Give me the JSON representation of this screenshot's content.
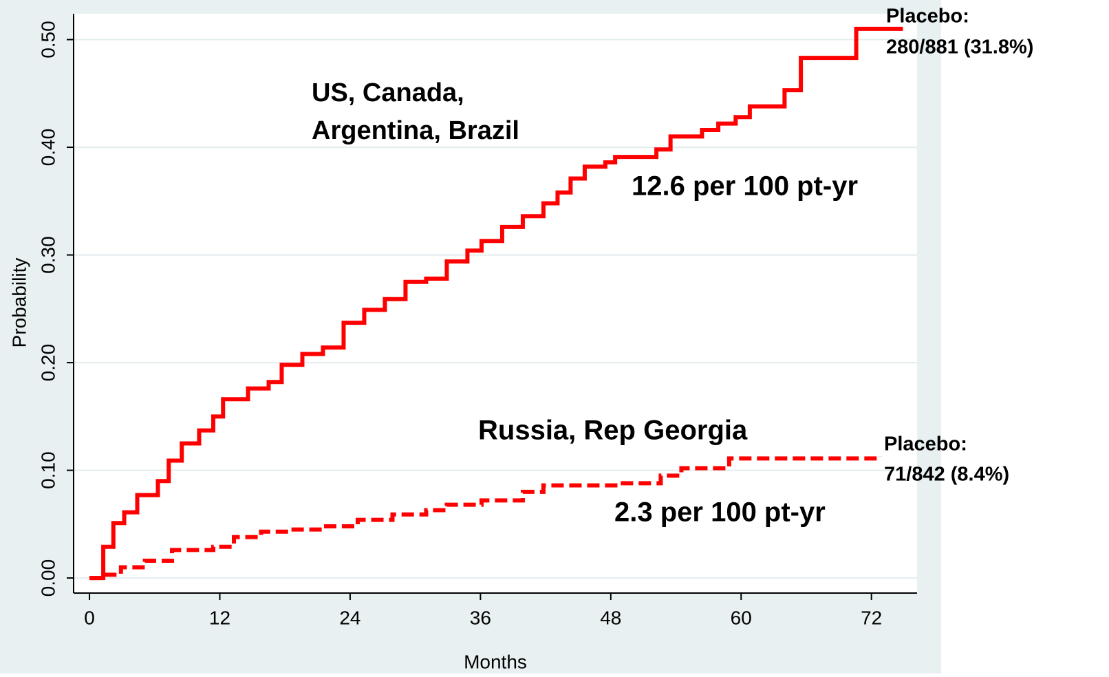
{
  "chart_data": {
    "type": "step",
    "x_label": "Months",
    "y_label": "Probability",
    "xlim": [
      -1.46,
      76.2
    ],
    "ylim": [
      -0.014,
      0.524
    ],
    "xticks": [
      0,
      12,
      24,
      36,
      48,
      60,
      72
    ],
    "yticks": [
      {
        "value": 0,
        "label": "0.00"
      },
      {
        "value": 0.1,
        "label": "0.10"
      },
      {
        "value": 0.2,
        "label": "0.20"
      },
      {
        "value": 0.3,
        "label": "0.30"
      },
      {
        "value": 0.4,
        "label": "0.40"
      },
      {
        "value": 0.5,
        "label": "0.50"
      }
    ],
    "grid": true,
    "series": [
      {
        "color": "#ff0000",
        "style": "solid",
        "x": [
          0,
          1.27,
          2.2,
          3.2,
          4.4,
          6.3,
          7.3,
          8.5,
          10.1,
          11.4,
          12.3,
          14.6,
          16.5,
          17.7,
          19.6,
          21.5,
          23.4,
          25.3,
          27.2,
          29.1,
          31.0,
          32.9,
          34.8,
          36.1,
          38.0,
          39.9,
          41.8,
          43.1,
          44.3,
          45.6,
          47.5,
          48.4,
          52.2,
          53.5,
          56.4,
          57.9,
          59.5,
          60.8,
          64.0,
          65.5,
          70.6,
          74.9
        ],
        "values": [
          0,
          0.029,
          0.051,
          0.061,
          0.077,
          0.09,
          0.109,
          0.125,
          0.137,
          0.15,
          0.166,
          0.176,
          0.182,
          0.198,
          0.208,
          0.214,
          0.237,
          0.249,
          0.259,
          0.275,
          0.278,
          0.294,
          0.304,
          0.313,
          0.326,
          0.336,
          0.348,
          0.358,
          0.371,
          0.382,
          0.386,
          0.391,
          0.398,
          0.41,
          0.416,
          0.422,
          0.428,
          0.438,
          0.453,
          0.483,
          0.51,
          0.51
        ]
      },
      {
        "color": "#ff0000",
        "style": "dashed",
        "x": [
          0,
          1.3,
          2.9,
          5.1,
          7.6,
          11.4,
          13.3,
          15.8,
          18.4,
          21.5,
          24.7,
          27.9,
          31.0,
          32.9,
          36.1,
          39.9,
          41.8,
          48.8,
          52.6,
          54.5,
          58.9,
          72.8
        ],
        "values": [
          0,
          0.003,
          0.01,
          0.016,
          0.026,
          0.029,
          0.038,
          0.043,
          0.045,
          0.048,
          0.054,
          0.059,
          0.063,
          0.068,
          0.072,
          0.08,
          0.086,
          0.088,
          0.095,
          0.102,
          0.111,
          0.113
        ]
      }
    ],
    "annotations": [
      "US, Canada,",
      "Argentina, Brazil",
      "12.6 per 100 pt-yr",
      "Russia, Rep Georgia",
      "2.3 per 100 pt-yr",
      "Placebo:",
      "280/881 (31.8%)",
      "Placebo:",
      "71/842 (8.4%)"
    ]
  }
}
